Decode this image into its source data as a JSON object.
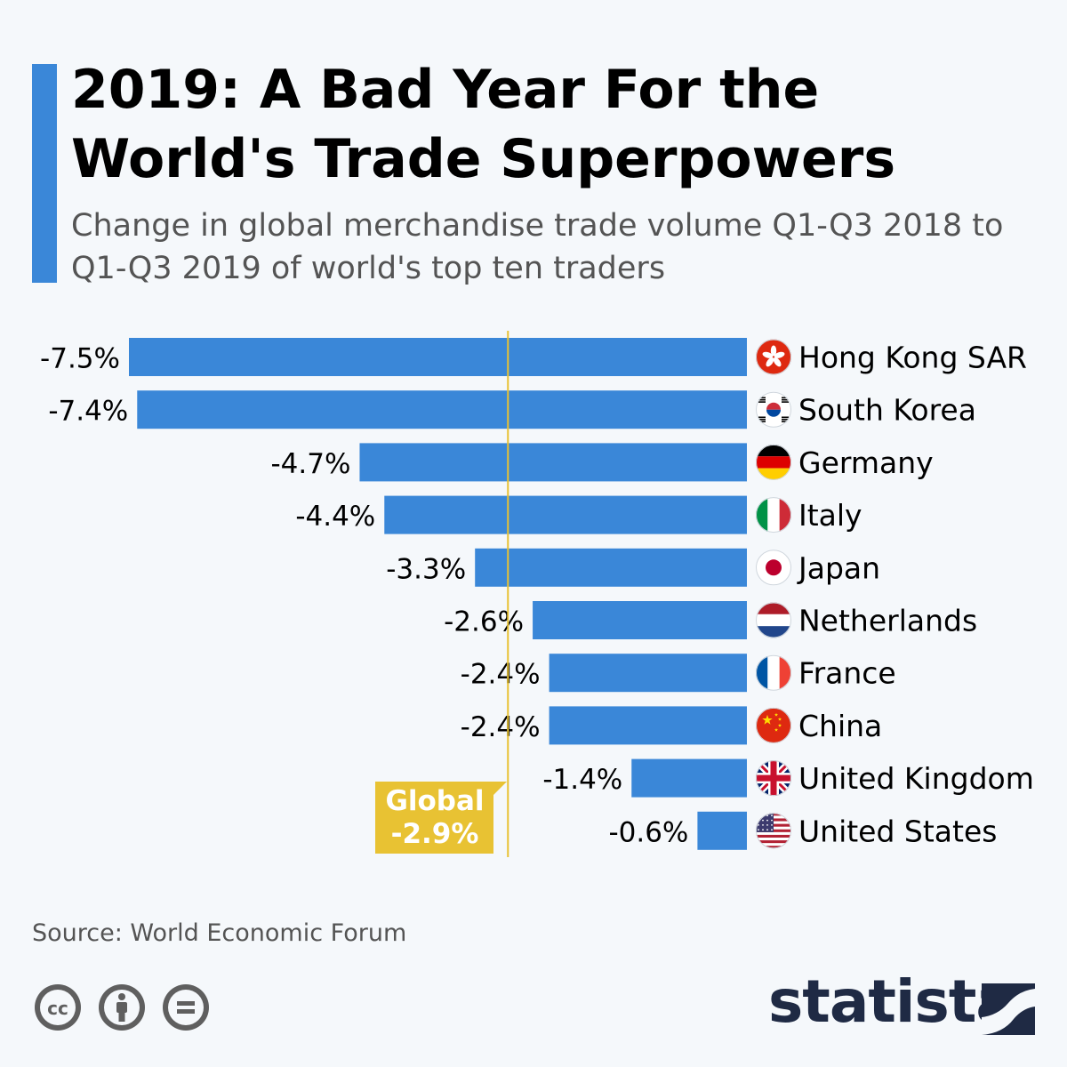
{
  "header": {
    "title": "2019: A Bad Year For the World's Trade Superpowers",
    "subtitle": "Change in global merchandise trade volume Q1-Q3 2018 to Q1-Q3 2019 of world's top ten traders"
  },
  "chart_data": {
    "type": "bar",
    "orientation": "horizontal",
    "categories": [
      "Hong Kong SAR",
      "South Korea",
      "Germany",
      "Italy",
      "Japan",
      "Netherlands",
      "France",
      "China",
      "United Kingdom",
      "United States"
    ],
    "values": [
      -7.5,
      -7.4,
      -4.7,
      -4.4,
      -3.3,
      -2.6,
      -2.4,
      -2.4,
      -1.4,
      -0.6
    ],
    "value_labels": [
      "-7.5%",
      "-7.4%",
      "-4.7%",
      "-4.4%",
      "-3.3%",
      "-2.6%",
      "-2.4%",
      "-2.4%",
      "-1.4%",
      "-0.6%"
    ],
    "flags": [
      "hong-kong-flag-icon",
      "south-korea-flag-icon",
      "germany-flag-icon",
      "italy-flag-icon",
      "japan-flag-icon",
      "netherlands-flag-icon",
      "france-flag-icon",
      "china-flag-icon",
      "united-kingdom-flag-icon",
      "united-states-flag-icon"
    ],
    "reference_line": {
      "value": -2.9,
      "label_line1": "Global",
      "label_line2": "-2.9%"
    },
    "xlim": [
      -7.5,
      0
    ],
    "bar_color": "#3a87d8",
    "reference_color": "#e8c233",
    "xlabel": "",
    "ylabel": ""
  },
  "footer": {
    "source": "Source: World Economic Forum",
    "license_icons": [
      "cc-icon",
      "attribution-icon",
      "no-derivatives-icon"
    ],
    "brand": "statista"
  }
}
